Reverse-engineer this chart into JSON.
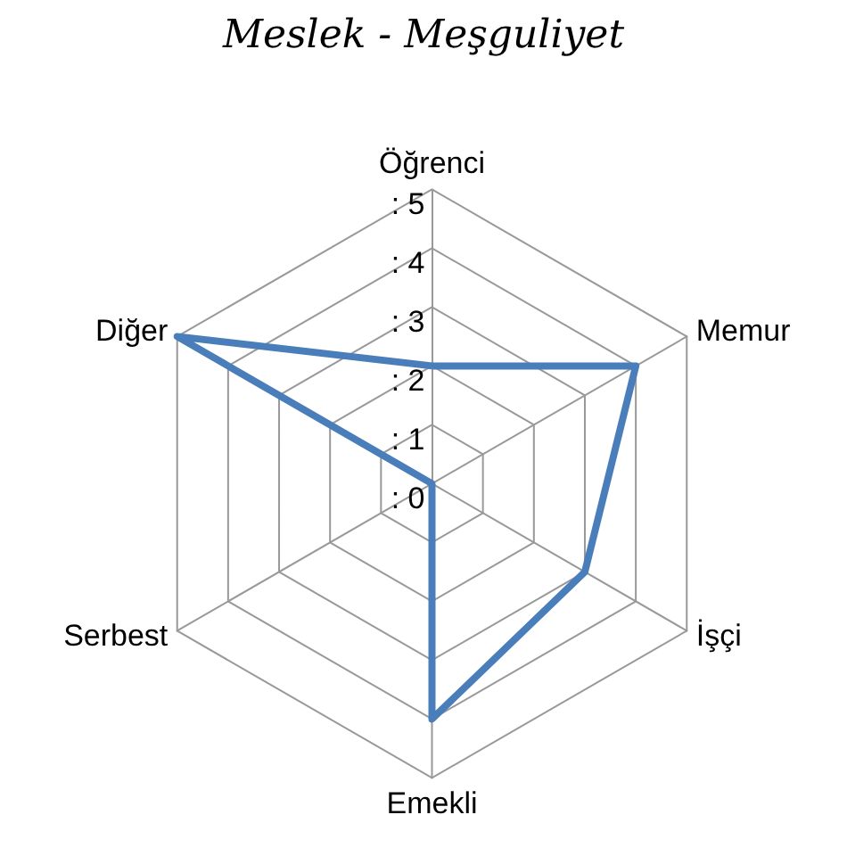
{
  "chart_data": {
    "type": "radar",
    "title": "Meslek - Meşguliyet",
    "categories": [
      "Öğrenci",
      "Memur",
      "İşçi",
      "Emekli",
      "Serbest",
      "Diğer"
    ],
    "series": [
      {
        "color": "#4a7ebb",
        "values": [
          2,
          4,
          3,
          4,
          0,
          5
        ]
      }
    ],
    "ylim": [
      0,
      5
    ],
    "yticks": [
      {
        "value": 0,
        "label": ": 0"
      },
      {
        "value": 1,
        "label": ": 1"
      },
      {
        "value": 2,
        "label": ": 2"
      },
      {
        "value": 3,
        "label": ": 3"
      },
      {
        "value": 4,
        "label": ": 4"
      },
      {
        "value": 5,
        "label": ": 5"
      }
    ],
    "grid": true,
    "marker": "none",
    "line_style": "solid"
  }
}
